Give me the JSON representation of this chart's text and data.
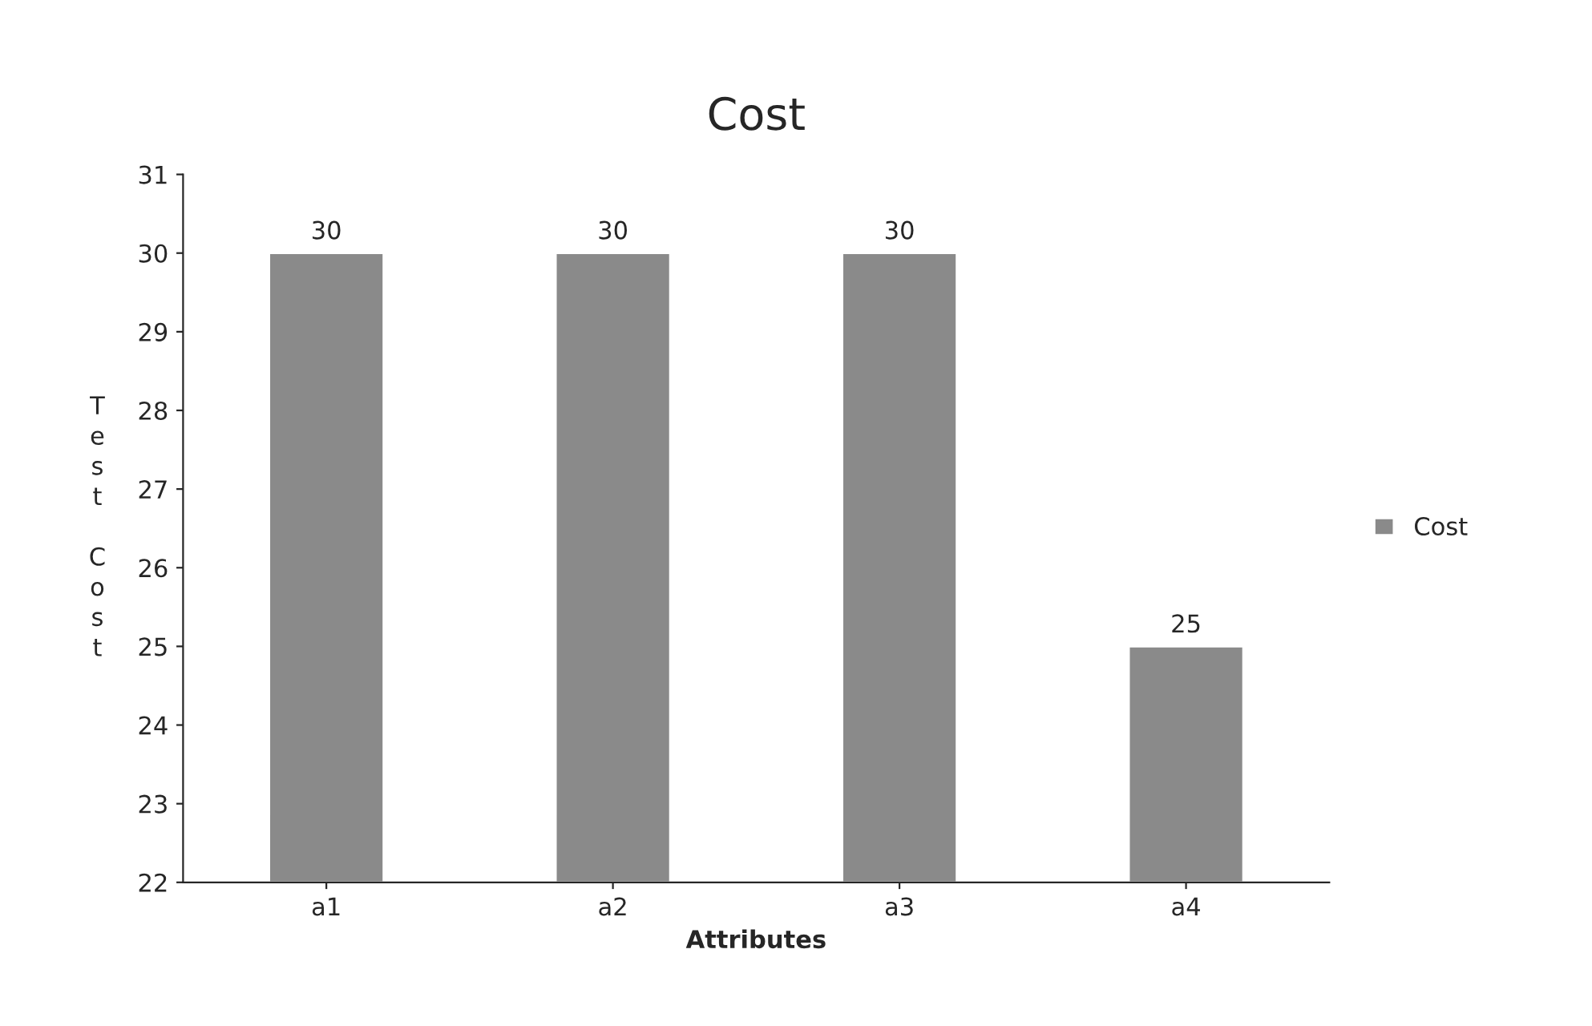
{
  "chart_data": {
    "type": "bar",
    "title": "Cost",
    "xlabel": "Attributes",
    "ylabel": "Test Cost",
    "categories": [
      "a1",
      "a2",
      "a3",
      "a4"
    ],
    "series": [
      {
        "name": "Cost",
        "color": "#8a8a8a",
        "values": [
          30,
          30,
          30,
          25
        ]
      }
    ],
    "ylim": [
      22,
      31
    ],
    "yticks": [
      22,
      23,
      24,
      25,
      26,
      27,
      28,
      29,
      30,
      31
    ],
    "data_labels": true,
    "legend": "right",
    "grid": false
  }
}
